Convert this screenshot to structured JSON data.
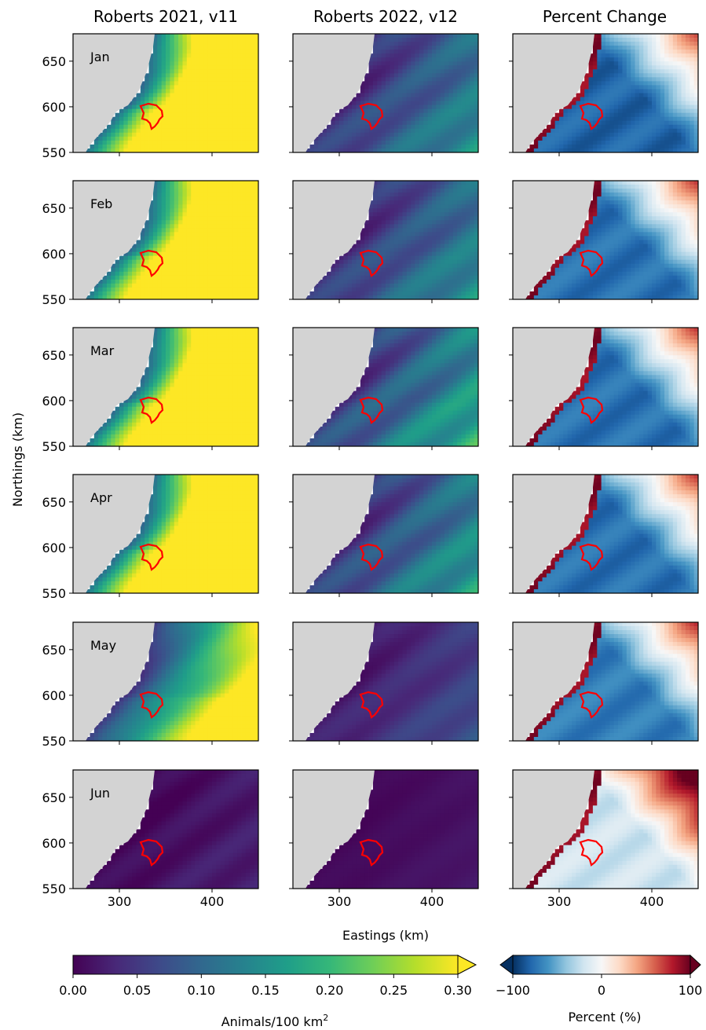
{
  "figure": {
    "column_titles": [
      "Roberts 2021, v11",
      "Roberts 2022, v12",
      "Percent Change"
    ],
    "ylabel": "Northings (km)",
    "xlabel": "Eastings (km)",
    "months": [
      "Jan",
      "Feb",
      "Mar",
      "Apr",
      "May",
      "Jun"
    ]
  },
  "colorbars": {
    "density": {
      "label_prefix": "Animals/100 km",
      "label_superscript": "2",
      "ticks": [
        "0.00",
        "0.05",
        "0.10",
        "0.15",
        "0.20",
        "0.25",
        "0.30"
      ],
      "range": [
        0,
        0.3
      ],
      "extend": "max",
      "colormap": "viridis"
    },
    "percent": {
      "label": "Percent (%)",
      "ticks": [
        "−100",
        "0",
        "100"
      ],
      "range": [
        -100,
        100
      ],
      "extend": "both",
      "colormap": "RdBu_r"
    }
  },
  "colors": {
    "land": "#d3d3d3",
    "outline": "#ff0000",
    "viridis": [
      "#440154",
      "#482878",
      "#3e4989",
      "#31688e",
      "#26828e",
      "#1f9e89",
      "#35b779",
      "#6ece58",
      "#b5de2b",
      "#fde725"
    ],
    "rdbu_r": [
      "#053061",
      "#2166ac",
      "#4393c3",
      "#92c5de",
      "#d1e5f0",
      "#f7f7f7",
      "#fddbc7",
      "#f4a582",
      "#d6604d",
      "#b2182b",
      "#67001f"
    ]
  },
  "chart_data": [
    {
      "type": "heatmap",
      "panel_grid": {
        "rows": 6,
        "cols": 3
      },
      "x_ticks": [
        300,
        400
      ],
      "y_ticks": [
        550,
        600,
        650
      ],
      "xlim": [
        250,
        450
      ],
      "ylim": [
        550,
        680
      ],
      "offshore_density_estimate": {
        "v11": {
          "Jan": 0.3,
          "Feb": 0.3,
          "Mar": 0.3,
          "Apr": 0.3,
          "May": 0.14,
          "Jun": 0.01
        },
        "v12": {
          "Jan": 0.08,
          "Feb": 0.08,
          "Mar": 0.1,
          "Apr": 0.09,
          "May": 0.04,
          "Jun": 0.01
        }
      },
      "percent_change_estimate": {
        "Jan": -80,
        "Feb": -75,
        "Mar": -75,
        "Apr": -75,
        "May": -70,
        "Jun": -20
      }
    }
  ]
}
